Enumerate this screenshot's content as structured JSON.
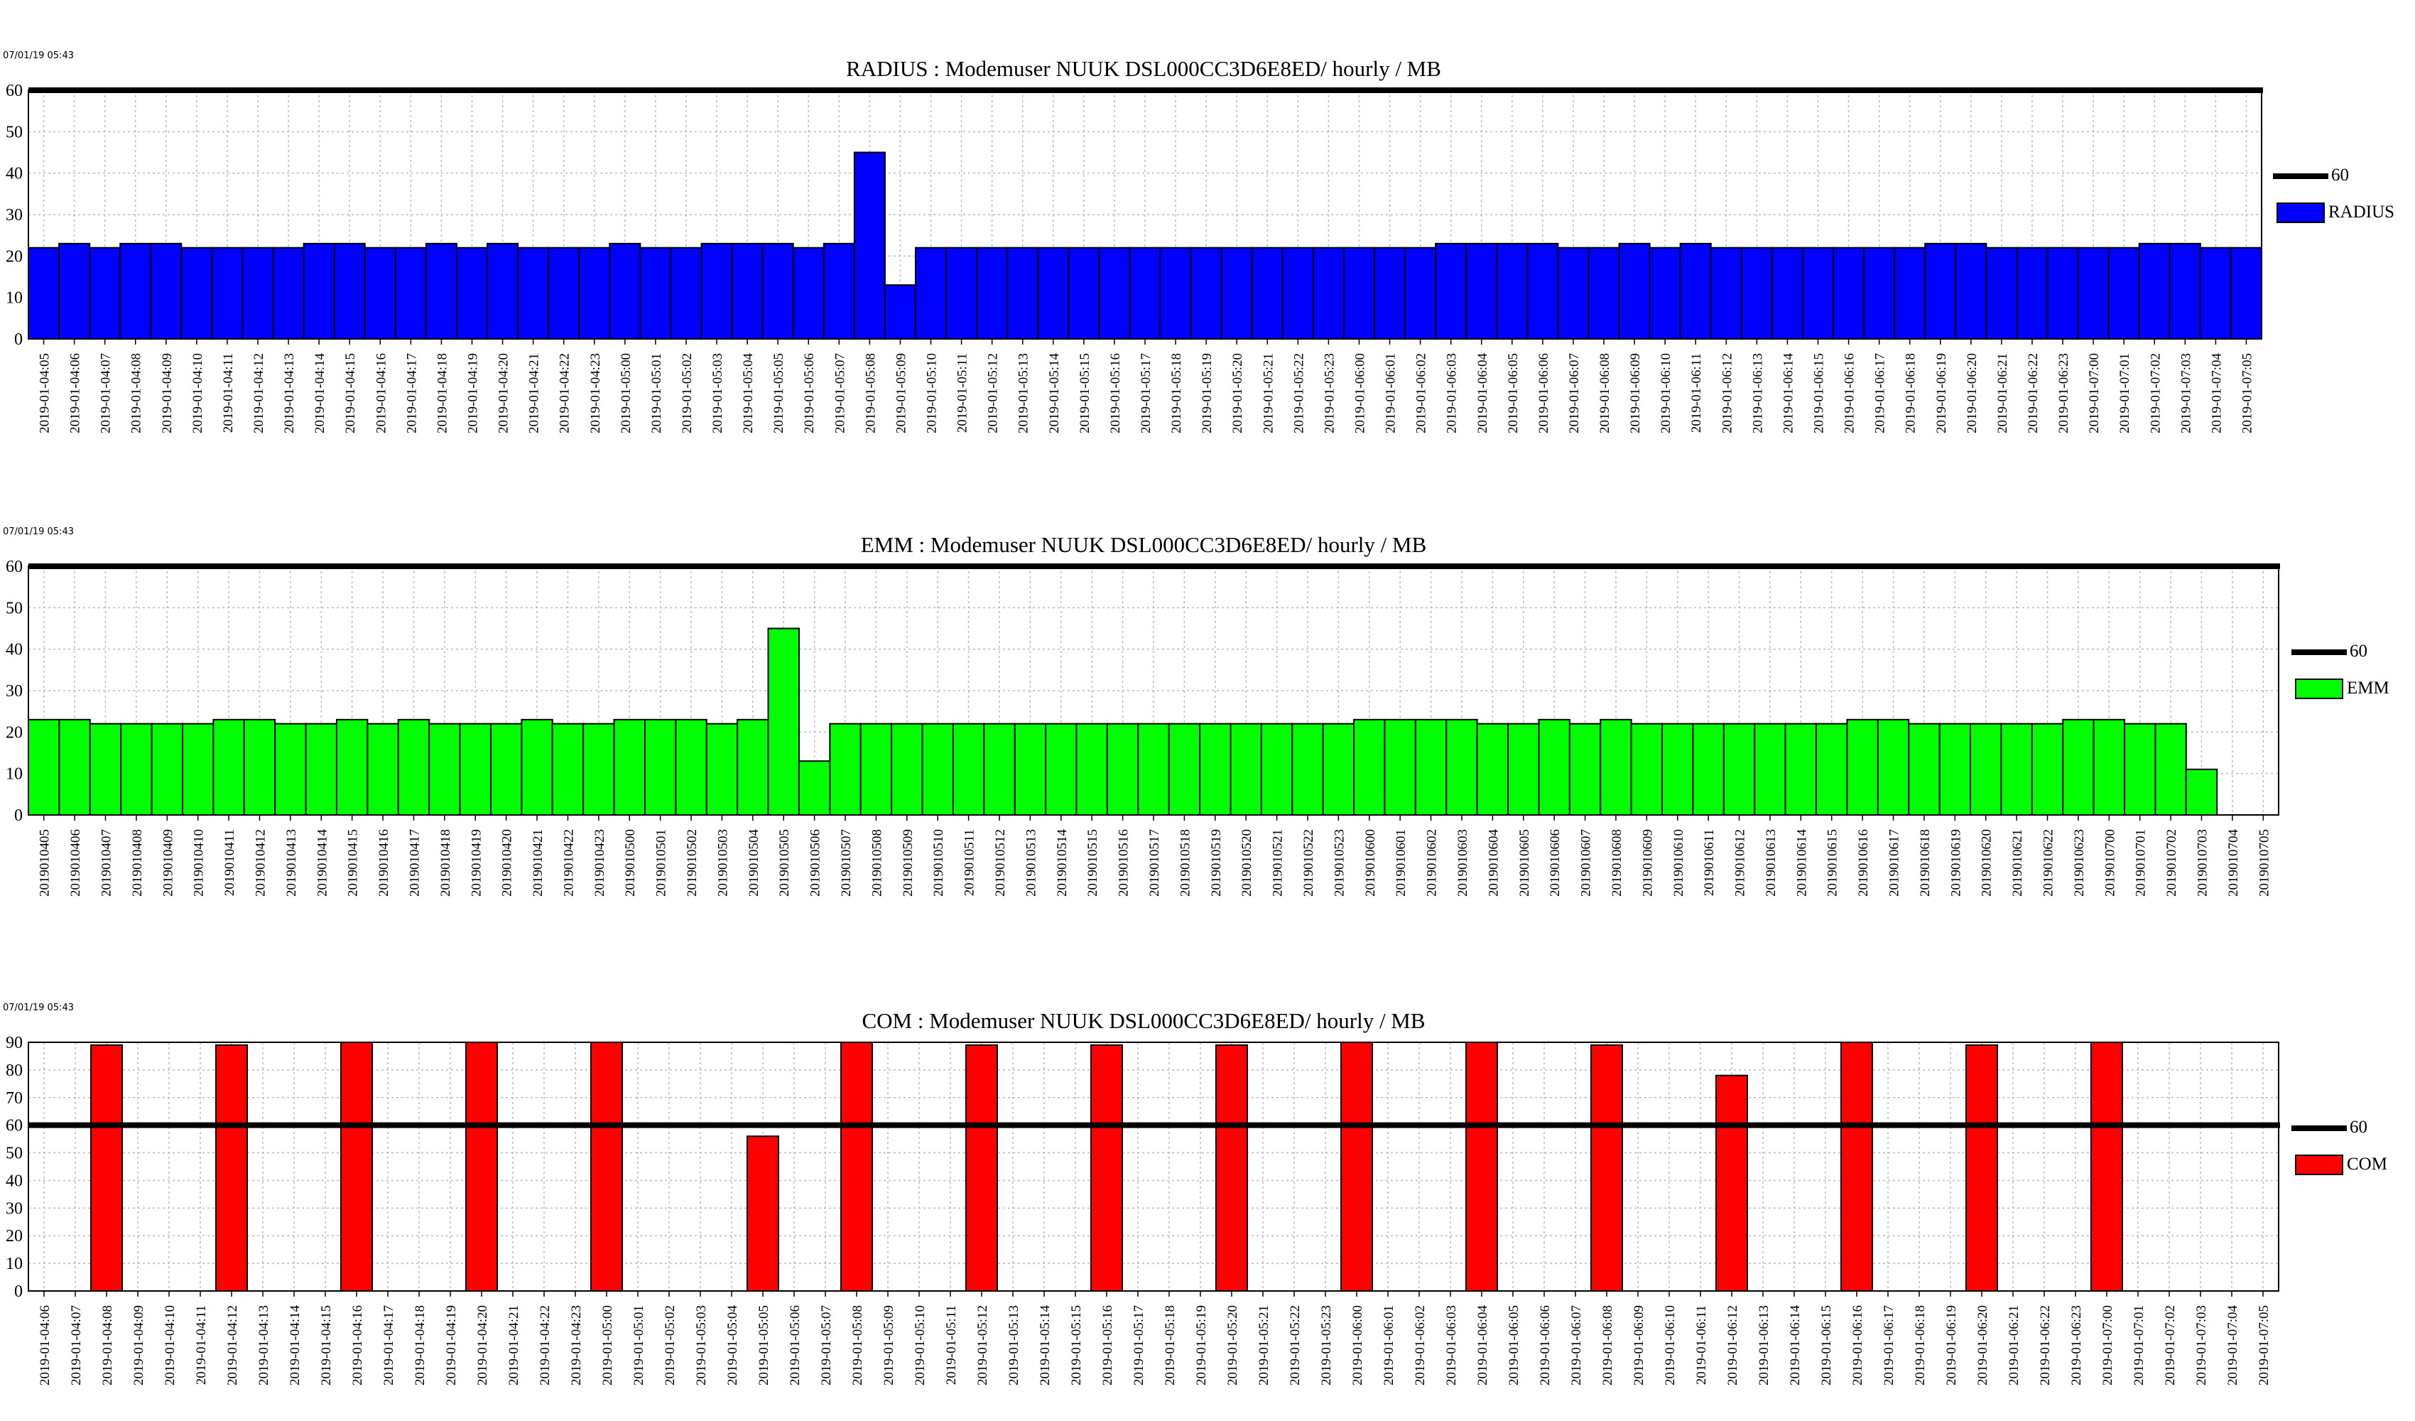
{
  "threshold_label": "60",
  "chart_data": [
    {
      "type": "bar",
      "timestamp": "07/01/19 05:43",
      "title": "RADIUS : Modemuser NUUK DSL000CC3D6E8ED/ hourly / MB",
      "ylim": [
        0,
        60
      ],
      "yticks": [
        0,
        10,
        20,
        30,
        40,
        50,
        60
      ],
      "threshold": 60,
      "legend": "right",
      "color": "#0000ff",
      "categories": [
        "2019-01-04:05",
        "2019-01-04:06",
        "2019-01-04:07",
        "2019-01-04:08",
        "2019-01-04:09",
        "2019-01-04:10",
        "2019-01-04:11",
        "2019-01-04:12",
        "2019-01-04:13",
        "2019-01-04:14",
        "2019-01-04:15",
        "2019-01-04:16",
        "2019-01-04:17",
        "2019-01-04:18",
        "2019-01-04:19",
        "2019-01-04:20",
        "2019-01-04:21",
        "2019-01-04:22",
        "2019-01-04:23",
        "2019-01-05:00",
        "2019-01-05:01",
        "2019-01-05:02",
        "2019-01-05:03",
        "2019-01-05:04",
        "2019-01-05:05",
        "2019-01-05:06",
        "2019-01-05:07",
        "2019-01-05:08",
        "2019-01-05:09",
        "2019-01-05:10",
        "2019-01-05:11",
        "2019-01-05:12",
        "2019-01-05:13",
        "2019-01-05:14",
        "2019-01-05:15",
        "2019-01-05:16",
        "2019-01-05:17",
        "2019-01-05:18",
        "2019-01-05:19",
        "2019-01-05:20",
        "2019-01-05:21",
        "2019-01-05:22",
        "2019-01-05:23",
        "2019-01-06:00",
        "2019-01-06:01",
        "2019-01-06:02",
        "2019-01-06:03",
        "2019-01-06:04",
        "2019-01-06:05",
        "2019-01-06:06",
        "2019-01-06:07",
        "2019-01-06:08",
        "2019-01-06:09",
        "2019-01-06:10",
        "2019-01-06:11",
        "2019-01-06:12",
        "2019-01-06:13",
        "2019-01-06:14",
        "2019-01-06:15",
        "2019-01-06:16",
        "2019-01-06:17",
        "2019-01-06:18",
        "2019-01-06:19",
        "2019-01-06:20",
        "2019-01-06:21",
        "2019-01-06:22",
        "2019-01-06:23",
        "2019-01-07:00",
        "2019-01-07:01",
        "2019-01-07:02",
        "2019-01-07:03",
        "2019-01-07:04",
        "2019-01-07:05"
      ],
      "series": [
        {
          "name": "RADIUS",
          "values": [
            22,
            23,
            22,
            23,
            23,
            22,
            22,
            22,
            22,
            23,
            23,
            22,
            22,
            23,
            22,
            23,
            22,
            22,
            22,
            23,
            22,
            22,
            23,
            23,
            23,
            22,
            23,
            45,
            13,
            22,
            22,
            22,
            22,
            22,
            22,
            22,
            22,
            22,
            22,
            22,
            22,
            22,
            22,
            22,
            22,
            22,
            23,
            23,
            23,
            23,
            22,
            22,
            23,
            22,
            23,
            22,
            22,
            22,
            22,
            22,
            22,
            22,
            23,
            23,
            22,
            22,
            22,
            22,
            22,
            23,
            23,
            22,
            22
          ]
        }
      ]
    },
    {
      "type": "bar",
      "timestamp": "07/01/19 05:43",
      "title": "EMM :  Modemuser NUUK DSL000CC3D6E8ED/ hourly / MB",
      "ylim": [
        0,
        60
      ],
      "yticks": [
        0,
        10,
        20,
        30,
        40,
        50,
        60
      ],
      "threshold": 60,
      "legend": "right",
      "color": "#00ff00",
      "categories": [
        "2019010405",
        "2019010406",
        "2019010407",
        "2019010408",
        "2019010409",
        "2019010410",
        "2019010411",
        "2019010412",
        "2019010413",
        "2019010414",
        "2019010415",
        "2019010416",
        "2019010417",
        "2019010418",
        "2019010419",
        "2019010420",
        "2019010421",
        "2019010422",
        "2019010423",
        "2019010500",
        "2019010501",
        "2019010502",
        "2019010503",
        "2019010504",
        "2019010505",
        "2019010506",
        "2019010507",
        "2019010508",
        "2019010509",
        "2019010510",
        "2019010511",
        "2019010512",
        "2019010513",
        "2019010514",
        "2019010515",
        "2019010516",
        "2019010517",
        "2019010518",
        "2019010519",
        "2019010520",
        "2019010521",
        "2019010522",
        "2019010523",
        "2019010600",
        "2019010601",
        "2019010602",
        "2019010603",
        "2019010604",
        "2019010605",
        "2019010606",
        "2019010607",
        "2019010608",
        "2019010609",
        "2019010610",
        "2019010611",
        "2019010612",
        "2019010613",
        "2019010614",
        "2019010615",
        "2019010616",
        "2019010617",
        "2019010618",
        "2019010619",
        "2019010620",
        "2019010621",
        "2019010622",
        "2019010623",
        "2019010700",
        "2019010701",
        "2019010702",
        "2019010703",
        "2019010704",
        "2019010705"
      ],
      "series": [
        {
          "name": "EMM",
          "values": [
            23,
            23,
            22,
            22,
            22,
            22,
            23,
            23,
            22,
            22,
            23,
            22,
            23,
            22,
            22,
            22,
            23,
            22,
            22,
            23,
            23,
            23,
            22,
            23,
            45,
            13,
            22,
            22,
            22,
            22,
            22,
            22,
            22,
            22,
            22,
            22,
            22,
            22,
            22,
            22,
            22,
            22,
            22,
            23,
            23,
            23,
            23,
            22,
            22,
            23,
            22,
            23,
            22,
            22,
            22,
            22,
            22,
            22,
            22,
            23,
            23,
            22,
            22,
            22,
            22,
            22,
            23,
            23,
            22,
            22,
            11,
            null,
            null
          ]
        }
      ]
    },
    {
      "type": "bar",
      "timestamp": "07/01/19 05:43",
      "title": "COM : Modemuser NUUK DSL000CC3D6E8ED/ hourly / MB",
      "ylim": [
        0,
        90
      ],
      "yticks": [
        0,
        10,
        20,
        30,
        40,
        50,
        60,
        70,
        80,
        90
      ],
      "threshold": 60,
      "legend": "right",
      "color": "#ff0000",
      "categories": [
        "2019-01-04:06",
        "2019-01-04:07",
        "2019-01-04:08",
        "2019-01-04:09",
        "2019-01-04:10",
        "2019-01-04:11",
        "2019-01-04:12",
        "2019-01-04:13",
        "2019-01-04:14",
        "2019-01-04:15",
        "2019-01-04:16",
        "2019-01-04:17",
        "2019-01-04:18",
        "2019-01-04:19",
        "2019-01-04:20",
        "2019-01-04:21",
        "2019-01-04:22",
        "2019-01-04:23",
        "2019-01-05:00",
        "2019-01-05:01",
        "2019-01-05:02",
        "2019-01-05:03",
        "2019-01-05:04",
        "2019-01-05:05",
        "2019-01-05:06",
        "2019-01-05:07",
        "2019-01-05:08",
        "2019-01-05:09",
        "2019-01-05:10",
        "2019-01-05:11",
        "2019-01-05:12",
        "2019-01-05:13",
        "2019-01-05:14",
        "2019-01-05:15",
        "2019-01-05:16",
        "2019-01-05:17",
        "2019-01-05:18",
        "2019-01-05:19",
        "2019-01-05:20",
        "2019-01-05:21",
        "2019-01-05:22",
        "2019-01-05:23",
        "2019-01-06:00",
        "2019-01-06:01",
        "2019-01-06:02",
        "2019-01-06:03",
        "2019-01-06:04",
        "2019-01-06:05",
        "2019-01-06:06",
        "2019-01-06:07",
        "2019-01-06:08",
        "2019-01-06:09",
        "2019-01-06:10",
        "2019-01-06:11",
        "2019-01-06:12",
        "2019-01-06:13",
        "2019-01-06:14",
        "2019-01-06:15",
        "2019-01-06:16",
        "2019-01-06:17",
        "2019-01-06:18",
        "2019-01-06:19",
        "2019-01-06:20",
        "2019-01-06:21",
        "2019-01-06:22",
        "2019-01-06:23",
        "2019-01-07:00",
        "2019-01-07:01",
        "2019-01-07:02",
        "2019-01-07:03",
        "2019-01-07:04",
        "2019-01-07:05"
      ],
      "series": [
        {
          "name": "COM",
          "values": [
            null,
            null,
            89,
            null,
            null,
            null,
            89,
            null,
            null,
            null,
            90,
            null,
            null,
            null,
            90,
            null,
            null,
            null,
            90,
            null,
            null,
            null,
            null,
            56,
            null,
            null,
            90,
            null,
            null,
            null,
            89,
            null,
            null,
            null,
            89,
            null,
            null,
            null,
            89,
            null,
            null,
            null,
            90,
            null,
            null,
            null,
            90,
            null,
            null,
            null,
            89,
            null,
            null,
            null,
            78,
            null,
            null,
            null,
            90,
            null,
            null,
            null,
            89,
            null,
            null,
            null,
            90,
            null,
            null,
            null,
            null,
            null
          ]
        }
      ]
    }
  ]
}
